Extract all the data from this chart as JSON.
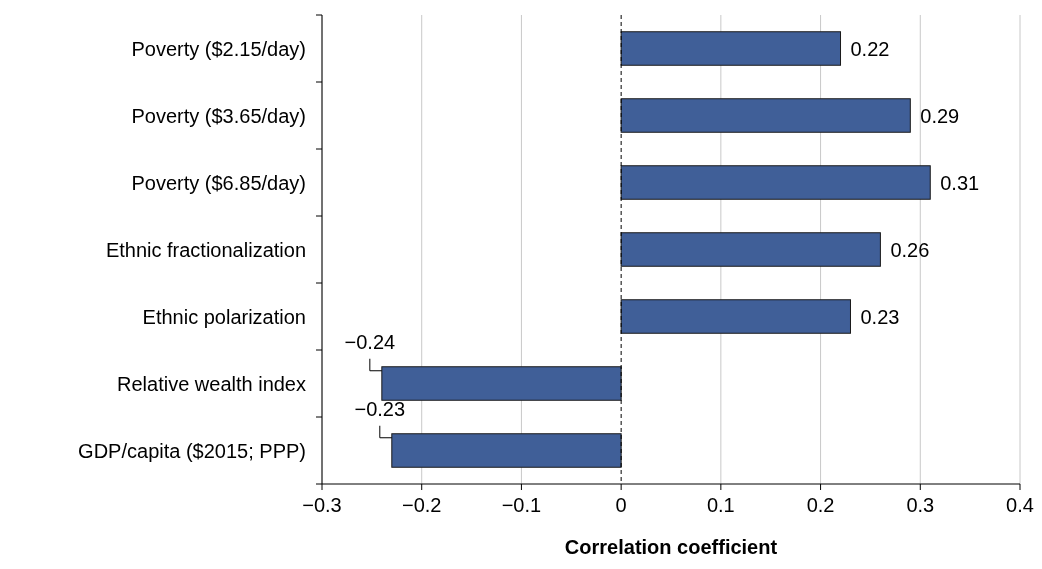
{
  "chart_data": {
    "type": "bar",
    "orientation": "horizontal",
    "xlabel": "Correlation coefficient",
    "categories": [
      "Poverty ($2.15/day)",
      "Poverty ($3.65/day)",
      "Poverty ($6.85/day)",
      "Ethnic fractionalization",
      "Ethnic polarization",
      "Relative wealth index",
      "GDP/capita ($2015; PPP)"
    ],
    "values": [
      0.22,
      0.29,
      0.31,
      0.26,
      0.23,
      -0.24,
      -0.23
    ],
    "color": "#405f98",
    "xlim": [
      -0.3,
      0.4
    ],
    "xticks": [
      {
        "value": -0.3,
        "label": "−0.3"
      },
      {
        "value": -0.2,
        "label": "−0.2"
      },
      {
        "value": -0.1,
        "label": "−0.1"
      },
      0,
      0.1,
      0.2,
      0.3,
      0.4
    ],
    "grid": "x",
    "data_labels": true,
    "ref_lines": [
      {
        "axis": "x",
        "value": 0,
        "line_style": "dashed",
        "color": "#000000"
      }
    ]
  }
}
